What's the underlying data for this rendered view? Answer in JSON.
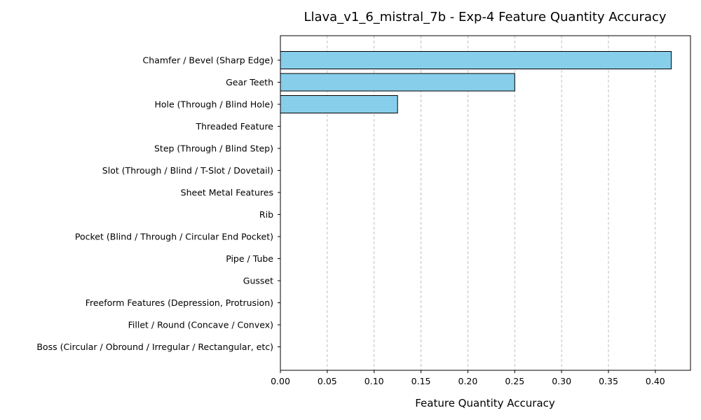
{
  "chart_data": {
    "type": "bar",
    "orientation": "horizontal",
    "title": "Llava_v1_6_mistral_7b - Exp-4 Feature Quantity Accuracy",
    "xlabel": "Feature Quantity Accuracy",
    "ylabel": "",
    "categories": [
      "Chamfer / Bevel (Sharp Edge)",
      "Gear Teeth",
      "Hole (Through / Blind Hole)",
      "Threaded Feature",
      "Step (Through / Blind Step)",
      "Slot (Through / Blind / T-Slot / Dovetail)",
      "Sheet Metal Features",
      "Rib",
      "Pocket (Blind / Through / Circular End Pocket)",
      "Pipe / Tube",
      "Gusset",
      "Freeform Features (Depression, Protrusion)",
      "Fillet / Round (Concave / Convex)",
      "Boss (Circular / Obround / Irregular / Rectangular, etc)"
    ],
    "values": [
      0.417,
      0.25,
      0.125,
      0,
      0,
      0,
      0,
      0,
      0,
      0,
      0,
      0,
      0,
      0
    ],
    "xlim": [
      0,
      0.4375
    ],
    "xticks": [
      "0.00",
      "0.05",
      "0.10",
      "0.15",
      "0.20",
      "0.25",
      "0.30",
      "0.35",
      "0.40"
    ],
    "grid": "x-dashed",
    "bar_color": "#87ceeb",
    "edge_color": "#000000",
    "grid_color": "#b0b0b0"
  }
}
